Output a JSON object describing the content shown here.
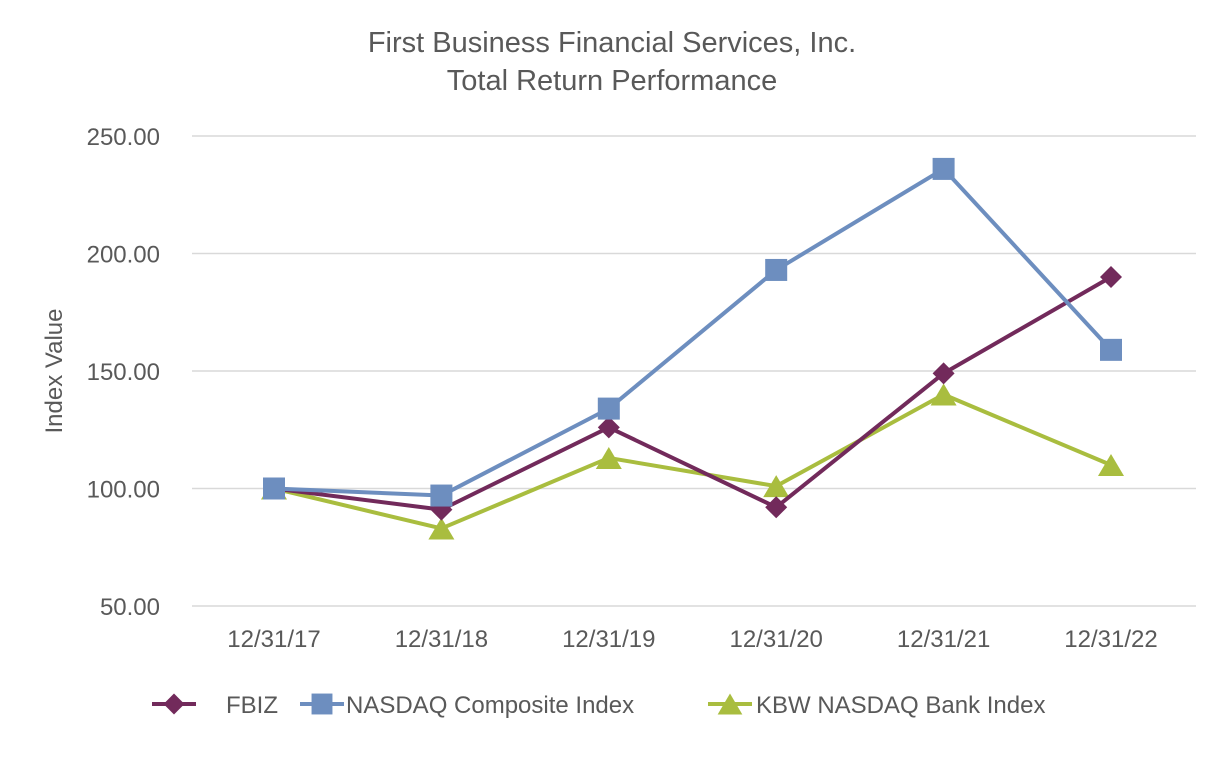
{
  "chart_data": {
    "type": "line",
    "title": [
      "First Business Financial Services, Inc.",
      "Total Return Performance"
    ],
    "xlabel": "",
    "ylabel": "Index Value",
    "categories": [
      "12/31/17",
      "12/31/18",
      "12/31/19",
      "12/31/20",
      "12/31/21",
      "12/31/22"
    ],
    "ylim": [
      50,
      250
    ],
    "yticks": [
      "250.00",
      "200.00",
      "150.00",
      "100.00",
      "50.00"
    ],
    "ytick_values": [
      250,
      200,
      150,
      100,
      50
    ],
    "grid": true,
    "legend_position": "bottom",
    "series": [
      {
        "name": "FBIZ",
        "values": [
          100,
          91,
          126,
          92,
          149,
          190
        ],
        "color": "#722a5b",
        "marker": "diamond"
      },
      {
        "name": "NASDAQ Composite Index",
        "values": [
          100,
          97,
          134,
          193,
          236,
          159
        ],
        "color": "#6d8ebf",
        "marker": "square"
      },
      {
        "name": "KBW NASDAQ Bank Index",
        "values": [
          100,
          83,
          113,
          101,
          140,
          110
        ],
        "color": "#a9bd3f",
        "marker": "triangle"
      }
    ]
  }
}
